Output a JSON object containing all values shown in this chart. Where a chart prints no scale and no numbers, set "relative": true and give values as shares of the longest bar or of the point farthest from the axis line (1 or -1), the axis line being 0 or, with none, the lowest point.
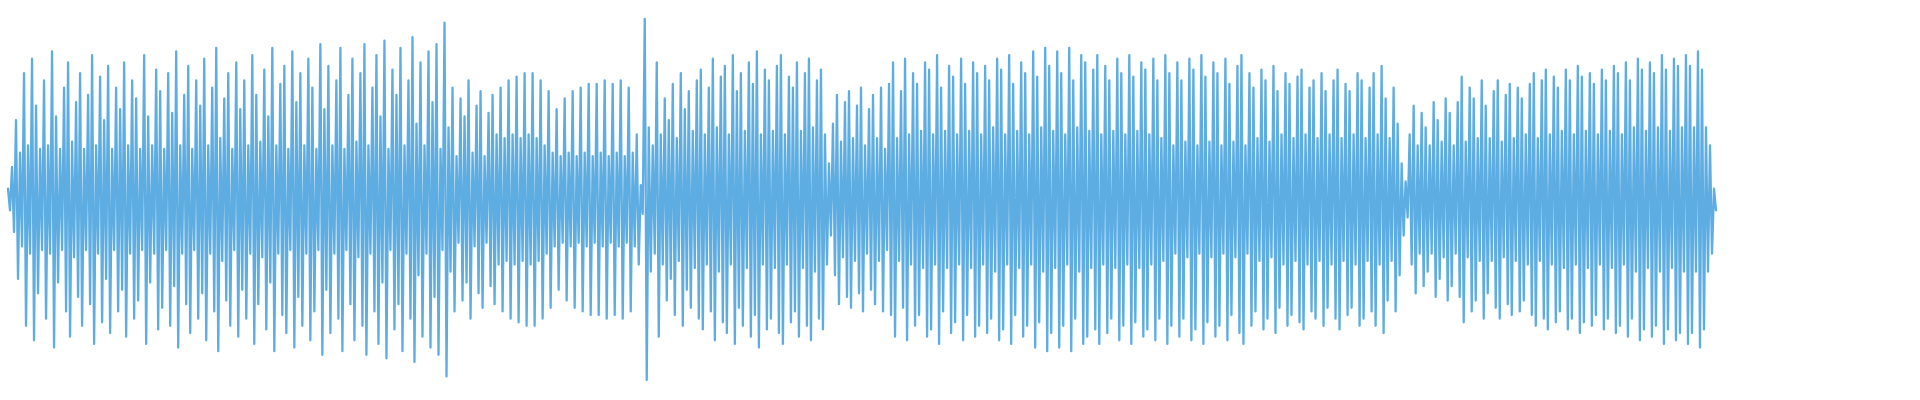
{
  "chart_data": {
    "type": "line",
    "relative": true,
    "color": "#5dade2",
    "categories": [
      null,
      null,
      null,
      null,
      null,
      null,
      null,
      null,
      null,
      null,
      null,
      null,
      null,
      null,
      null,
      null,
      null,
      null,
      null,
      null,
      null,
      null,
      null,
      null,
      null,
      null,
      null,
      null,
      null,
      null,
      null,
      null,
      null,
      null,
      null,
      null,
      null,
      null,
      null,
      null,
      null,
      null,
      null,
      null,
      null,
      null,
      null,
      null,
      null,
      null,
      null,
      null,
      null,
      null,
      null,
      null,
      null,
      null,
      null,
      null,
      null,
      null,
      null,
      null,
      null,
      null,
      null,
      null,
      null,
      null,
      null,
      null,
      null,
      null,
      null,
      null,
      null,
      null,
      null,
      null,
      null,
      null,
      null,
      null,
      null,
      null,
      null,
      null,
      null,
      null,
      null,
      null,
      null,
      null,
      null,
      null,
      null,
      null,
      null,
      null,
      null,
      null,
      null,
      null,
      null,
      null,
      null,
      null,
      null,
      null,
      null,
      null,
      null,
      null,
      null,
      null,
      null,
      null,
      null,
      null,
      null,
      null,
      null,
      null,
      null,
      null,
      null,
      null,
      null,
      null,
      null,
      null,
      null,
      null,
      null,
      null,
      null,
      null,
      null,
      null,
      null,
      null,
      null,
      null,
      null,
      null,
      null,
      null,
      null,
      null,
      null,
      null,
      null,
      null,
      null,
      null,
      null,
      null,
      null,
      null,
      null,
      null,
      null,
      null,
      null,
      null,
      null,
      null,
      null,
      null,
      null,
      null,
      null,
      null,
      null,
      null,
      null,
      null,
      null,
      null,
      null,
      null,
      null,
      null,
      null,
      null,
      null,
      null,
      null,
      null,
      null,
      null,
      null,
      null,
      null,
      null,
      null,
      null,
      null,
      null,
      null,
      null,
      null,
      null,
      null,
      null,
      null,
      null,
      null,
      null,
      null,
      null,
      null,
      null,
      null,
      null,
      null,
      null,
      null,
      null,
      null,
      null,
      null,
      null,
      null,
      null,
      null,
      null,
      null,
      null,
      null,
      null,
      null,
      null,
      null,
      null,
      null,
      null,
      null,
      null,
      null,
      null,
      null,
      null,
      null,
      null,
      null,
      null,
      null,
      null,
      null,
      null,
      null,
      null,
      null,
      null,
      null,
      null,
      null,
      null,
      null,
      null,
      null,
      null,
      null,
      null,
      null,
      null,
      null,
      null,
      null,
      null,
      null,
      null,
      null,
      null,
      null,
      null,
      null,
      null,
      null,
      null,
      null,
      null,
      null,
      null,
      null,
      null,
      null,
      null,
      null,
      null,
      null,
      null,
      null,
      null,
      null,
      null,
      null,
      null,
      null,
      null,
      null,
      null,
      null,
      null,
      null,
      null,
      null,
      null,
      null,
      null,
      null,
      null,
      null,
      null,
      null,
      null,
      null,
      null,
      null,
      null,
      null,
      null,
      null,
      null,
      null,
      null,
      null,
      null,
      null,
      null,
      null,
      null,
      null,
      null,
      null,
      null,
      null,
      null,
      null,
      null,
      null,
      null,
      null,
      null,
      null,
      null,
      null,
      null,
      null,
      null,
      null,
      null,
      null,
      null,
      null,
      null,
      null,
      null,
      null,
      null,
      null,
      null,
      null,
      null,
      null,
      null,
      null,
      null,
      null,
      null,
      null,
      null,
      null,
      null,
      null,
      null,
      null,
      null,
      null,
      null,
      null,
      null,
      null,
      null,
      null,
      null,
      null,
      null,
      null,
      null,
      null,
      null,
      null,
      null,
      null,
      null,
      null,
      null,
      null,
      null,
      null,
      null,
      null,
      null,
      null,
      null,
      null,
      null,
      null,
      null,
      null,
      null,
      null,
      null,
      null,
      null,
      null,
      null,
      null,
      null,
      null,
      null,
      null,
      null,
      null,
      null,
      null,
      null,
      null,
      null,
      null,
      null,
      null,
      null,
      null,
      null,
      null,
      null,
      null,
      null,
      null,
      null,
      null,
      null,
      null,
      null,
      null,
      null,
      null,
      null,
      null,
      null,
      null,
      null,
      null,
      null,
      null,
      null,
      null,
      null,
      null,
      null,
      null,
      null,
      null,
      null,
      null,
      null,
      null,
      null,
      null,
      null,
      null,
      null,
      null,
      null,
      null,
      null,
      null,
      null,
      null,
      null,
      null,
      null,
      null,
      null,
      null,
      null,
      null,
      null,
      null,
      null,
      null,
      null,
      null,
      null,
      null,
      null,
      null,
      null,
      null,
      null,
      null,
      null,
      null,
      null,
      null,
      null,
      null,
      null,
      null,
      null,
      null,
      null,
      null,
      null,
      null,
      null,
      null,
      null,
      null,
      null,
      null,
      null,
      null,
      null,
      null,
      null,
      null,
      null,
      null,
      null,
      null,
      null,
      null,
      null,
      null,
      null,
      null,
      null,
      null,
      null,
      null,
      null,
      null,
      null,
      null,
      null,
      null,
      null,
      null,
      null,
      null,
      null,
      null,
      null,
      null,
      null,
      null,
      null,
      null,
      null,
      null,
      null,
      null,
      null,
      null,
      null,
      null,
      null,
      null,
      null,
      null,
      null,
      null,
      null,
      null,
      null,
      null,
      null,
      null,
      null,
      null,
      null,
      null,
      null,
      null,
      null,
      null,
      null,
      null,
      null,
      null,
      null,
      null,
      null,
      null,
      null,
      null,
      null,
      null,
      null,
      null,
      null,
      null,
      null,
      null,
      null,
      null,
      null,
      null,
      null,
      null,
      null,
      null,
      null,
      null,
      null,
      null,
      null,
      null,
      null,
      null,
      null,
      null,
      null,
      null,
      null,
      null,
      null,
      null,
      null,
      null,
      null,
      null,
      null,
      null,
      null,
      null,
      null,
      null,
      null,
      null,
      null,
      null,
      null,
      null,
      null,
      null,
      null,
      null,
      null,
      null,
      null,
      null,
      null,
      null,
      null,
      null,
      null,
      null,
      null,
      null,
      null,
      null,
      null,
      null,
      null,
      null,
      null,
      null,
      null,
      null,
      null,
      null,
      null,
      null,
      null,
      null,
      null,
      null,
      null,
      null,
      null,
      null,
      null,
      null,
      null,
      null,
      null,
      null,
      null,
      null,
      null,
      null,
      null,
      null,
      null,
      null,
      null,
      null,
      null,
      null,
      null,
      null,
      null,
      null,
      null,
      null,
      null,
      null,
      null,
      null,
      null,
      null,
      null,
      null,
      null,
      null,
      null,
      null,
      null,
      null,
      null,
      null,
      null,
      null,
      null,
      null,
      null,
      null,
      null,
      null,
      null,
      null,
      null,
      null,
      null,
      null,
      null,
      null,
      null,
      null,
      null,
      null,
      null,
      null,
      null,
      null,
      null,
      null,
      null,
      null,
      null,
      null,
      null,
      null,
      null,
      null,
      null,
      null,
      null,
      null,
      null,
      null,
      null,
      null,
      null,
      null,
      null,
      null,
      null,
      null,
      null,
      null,
      null,
      null,
      null,
      null,
      null,
      null,
      null,
      null,
      null,
      null,
      null,
      null,
      null,
      null,
      null,
      null,
      null,
      null,
      null,
      null,
      null,
      null,
      null,
      null,
      null,
      null,
      null,
      null,
      null,
      null,
      null,
      null,
      null,
      null,
      null,
      null,
      null,
      null,
      null,
      null,
      null,
      null,
      null,
      null,
      null,
      null,
      null,
      null,
      null,
      null,
      null,
      null,
      null,
      null,
      null,
      null,
      null,
      null,
      null,
      null,
      null,
      null,
      null,
      null,
      null,
      null,
      null,
      null,
      null,
      null,
      null,
      null,
      null,
      null,
      null,
      null,
      null
    ],
    "values": [
      0.53,
      0.47,
      0.59,
      0.41,
      0.72,
      0.28,
      0.63,
      0.37,
      0.85,
      0.15,
      0.65,
      0.35,
      0.89,
      0.11,
      0.76,
      0.24,
      0.64,
      0.36,
      0.83,
      0.17,
      0.65,
      0.35,
      0.91,
      0.09,
      0.73,
      0.27,
      0.64,
      0.36,
      0.81,
      0.19,
      0.88,
      0.12,
      0.66,
      0.34,
      0.77,
      0.23,
      0.85,
      0.15,
      0.64,
      0.36,
      0.79,
      0.21,
      0.9,
      0.1,
      0.65,
      0.35,
      0.84,
      0.16,
      0.72,
      0.28,
      0.87,
      0.13,
      0.64,
      0.36,
      0.81,
      0.19,
      0.75,
      0.25,
      0.88,
      0.12,
      0.65,
      0.35,
      0.83,
      0.17,
      0.78,
      0.22,
      0.64,
      0.36,
      0.9,
      0.1,
      0.73,
      0.27,
      0.65,
      0.35,
      0.86,
      0.14,
      0.8,
      0.2,
      0.64,
      0.36,
      0.85,
      0.15,
      0.74,
      0.26,
      0.91,
      0.09,
      0.65,
      0.35,
      0.79,
      0.21,
      0.87,
      0.13,
      0.64,
      0.36,
      0.83,
      0.17,
      0.76,
      0.24,
      0.89,
      0.11,
      0.65,
      0.35,
      0.81,
      0.19,
      0.92,
      0.08,
      0.67,
      0.33,
      0.78,
      0.22,
      0.85,
      0.15,
      0.64,
      0.36,
      0.88,
      0.12,
      0.75,
      0.25,
      0.83,
      0.17,
      0.65,
      0.35,
      0.9,
      0.1,
      0.79,
      0.21,
      0.66,
      0.34,
      0.86,
      0.14,
      0.73,
      0.27,
      0.92,
      0.08,
      0.65,
      0.35,
      0.82,
      0.18,
      0.87,
      0.13,
      0.64,
      0.36,
      0.91,
      0.09,
      0.77,
      0.23,
      0.85,
      0.15,
      0.65,
      0.35,
      0.89,
      0.11,
      0.81,
      0.19,
      0.64,
      0.36,
      0.93,
      0.07,
      0.75,
      0.25,
      0.87,
      0.13,
      0.65,
      0.35,
      0.83,
      0.17,
      0.92,
      0.08,
      0.64,
      0.36,
      0.79,
      0.21,
      0.89,
      0.11,
      0.66,
      0.34,
      0.85,
      0.15,
      0.93,
      0.07,
      0.65,
      0.35,
      0.81,
      0.19,
      0.9,
      0.1,
      0.73,
      0.27,
      0.94,
      0.06,
      0.64,
      0.36,
      0.86,
      0.14,
      0.79,
      0.21,
      0.92,
      0.08,
      0.65,
      0.35,
      0.83,
      0.17,
      0.95,
      0.05,
      0.71,
      0.29,
      0.88,
      0.12,
      0.65,
      0.35,
      0.91,
      0.09,
      0.77,
      0.23,
      0.93,
      0.07,
      0.64,
      0.36,
      0.99,
      0.01,
      0.7,
      0.3,
      0.81,
      0.19,
      0.62,
      0.38,
      0.78,
      0.22,
      0.73,
      0.27,
      0.83,
      0.17,
      0.63,
      0.37,
      0.76,
      0.24,
      0.8,
      0.2,
      0.62,
      0.38,
      0.74,
      0.26,
      0.79,
      0.21,
      0.68,
      0.32,
      0.81,
      0.19,
      0.67,
      0.33,
      0.83,
      0.17,
      0.68,
      0.32,
      0.84,
      0.16,
      0.67,
      0.33,
      0.85,
      0.15,
      0.68,
      0.32,
      0.85,
      0.15,
      0.67,
      0.33,
      0.83,
      0.17,
      0.65,
      0.35,
      0.8,
      0.2,
      0.63,
      0.37,
      0.75,
      0.25,
      0.62,
      0.38,
      0.78,
      0.22,
      0.63,
      0.37,
      0.8,
      0.2,
      0.62,
      0.38,
      0.81,
      0.19,
      0.63,
      0.37,
      0.82,
      0.18,
      0.62,
      0.38,
      0.82,
      0.18,
      0.63,
      0.37,
      0.83,
      0.17,
      0.62,
      0.38,
      0.82,
      0.18,
      0.63,
      0.37,
      0.83,
      0.17,
      0.62,
      0.38,
      0.81,
      0.19,
      0.63,
      0.37,
      0.68,
      0.32,
      0.54,
      0.46,
      1,
      0,
      0.7,
      0.3,
      0.65,
      0.35,
      0.88,
      0.12,
      0.68,
      0.32,
      0.78,
      0.22,
      0.72,
      0.28,
      0.82,
      0.18,
      0.67,
      0.33,
      0.85,
      0.15,
      0.75,
      0.25,
      0.8,
      0.2,
      0.69,
      0.31,
      0.83,
      0.17,
      0.86,
      0.14,
      0.68,
      0.32,
      0.81,
      0.19,
      0.89,
      0.11,
      0.7,
      0.3,
      0.84,
      0.16,
      0.87,
      0.13,
      0.68,
      0.32,
      0.9,
      0.1,
      0.8,
      0.2,
      0.85,
      0.15,
      0.69,
      0.31,
      0.88,
      0.12,
      0.82,
      0.18,
      0.91,
      0.09,
      0.68,
      0.32,
      0.86,
      0.14,
      0.83,
      0.17,
      0.69,
      0.31,
      0.87,
      0.13,
      0.9,
      0.1,
      0.68,
      0.32,
      0.84,
      0.16,
      0.81,
      0.19,
      0.88,
      0.12,
      0.69,
      0.31,
      0.85,
      0.15,
      0.89,
      0.11,
      0.7,
      0.3,
      0.83,
      0.17,
      0.86,
      0.14,
      0.68,
      0.32,
      0.6,
      0.4,
      0.71,
      0.29,
      0.79,
      0.21,
      0.66,
      0.34,
      0.77,
      0.23,
      0.8,
      0.2,
      0.67,
      0.33,
      0.76,
      0.24,
      0.81,
      0.19,
      0.65,
      0.35,
      0.75,
      0.25,
      0.79,
      0.21,
      0.67,
      0.33,
      0.81,
      0.19,
      0.64,
      0.36,
      0.82,
      0.18,
      0.88,
      0.12,
      0.67,
      0.33,
      0.8,
      0.2,
      0.89,
      0.11,
      0.68,
      0.32,
      0.85,
      0.15,
      0.82,
      0.18,
      0.69,
      0.31,
      0.88,
      0.12,
      0.86,
      0.14,
      0.68,
      0.32,
      0.9,
      0.1,
      0.81,
      0.19,
      0.69,
      0.31,
      0.87,
      0.13,
      0.84,
      0.16,
      0.68,
      0.32,
      0.89,
      0.11,
      0.82,
      0.18,
      0.69,
      0.31,
      0.88,
      0.12,
      0.85,
      0.15,
      0.68,
      0.32,
      0.87,
      0.13,
      0.83,
      0.17,
      0.7,
      0.3,
      0.89,
      0.11,
      0.86,
      0.14,
      0.68,
      0.32,
      0.9,
      0.1,
      0.82,
      0.18,
      0.69,
      0.31,
      0.88,
      0.12,
      0.85,
      0.15,
      0.68,
      0.32,
      0.91,
      0.09,
      0.84,
      0.16,
      0.7,
      0.3,
      0.92,
      0.08,
      0.87,
      0.13,
      0.69,
      0.31,
      0.91,
      0.09,
      0.85,
      0.15,
      0.68,
      0.32,
      0.92,
      0.08,
      0.83,
      0.17,
      0.7,
      0.3,
      0.9,
      0.1,
      0.88,
      0.12,
      0.69,
      0.31,
      0.86,
      0.14,
      0.9,
      0.1,
      0.68,
      0.32,
      0.87,
      0.13,
      0.83,
      0.17,
      0.69,
      0.31,
      0.89,
      0.11,
      0.85,
      0.15,
      0.68,
      0.32,
      0.9,
      0.1,
      0.84,
      0.16,
      0.69,
      0.31,
      0.88,
      0.12,
      0.86,
      0.14,
      0.68,
      0.32,
      0.89,
      0.11,
      0.83,
      0.17,
      0.67,
      0.33,
      0.9,
      0.1,
      0.85,
      0.15,
      0.65,
      0.35,
      0.88,
      0.12,
      0.83,
      0.17,
      0.66,
      0.34,
      0.89,
      0.11,
      0.86,
      0.14,
      0.65,
      0.35,
      0.9,
      0.1,
      0.84,
      0.16,
      0.66,
      0.34,
      0.88,
      0.12,
      0.85,
      0.15,
      0.65,
      0.35,
      0.89,
      0.11,
      0.82,
      0.18,
      0.66,
      0.34,
      0.87,
      0.13,
      0.9,
      0.1,
      0.65,
      0.35,
      0.85,
      0.15,
      0.81,
      0.19,
      0.67,
      0.33,
      0.86,
      0.14,
      0.83,
      0.17,
      0.66,
      0.34,
      0.87,
      0.13,
      0.8,
      0.2,
      0.68,
      0.32,
      0.85,
      0.15,
      0.82,
      0.18,
      0.67,
      0.33,
      0.84,
      0.16,
      0.86,
      0.14,
      0.68,
      0.32,
      0.81,
      0.19,
      0.83,
      0.17,
      0.67,
      0.33,
      0.85,
      0.15,
      0.8,
      0.2,
      0.68,
      0.32,
      0.83,
      0.17,
      0.86,
      0.14,
      0.67,
      0.33,
      0.82,
      0.18,
      0.8,
      0.2,
      0.68,
      0.32,
      0.85,
      0.15,
      0.83,
      0.17,
      0.67,
      0.33,
      0.81,
      0.19,
      0.85,
      0.15,
      0.68,
      0.32,
      0.87,
      0.13,
      0.78,
      0.22,
      0.67,
      0.33,
      0.81,
      0.19,
      0.71,
      0.29,
      0.6,
      0.4,
      0.55,
      0.45,
      0.68,
      0.32,
      0.76,
      0.24,
      0.65,
      0.35,
      0.74,
      0.26,
      0.7,
      0.3,
      0.65,
      0.35,
      0.77,
      0.23,
      0.72,
      0.28,
      0.66,
      0.34,
      0.78,
      0.22,
      0.74,
      0.26,
      0.65,
      0.35,
      0.77,
      0.23,
      0.84,
      0.16,
      0.66,
      0.34,
      0.81,
      0.19,
      0.78,
      0.22,
      0.67,
      0.33,
      0.83,
      0.17,
      0.76,
      0.24,
      0.67,
      0.33,
      0.8,
      0.2,
      0.83,
      0.17,
      0.66,
      0.34,
      0.79,
      0.21,
      0.82,
      0.18,
      0.67,
      0.33,
      0.81,
      0.19,
      0.78,
      0.22,
      0.68,
      0.32,
      0.82,
      0.18,
      0.85,
      0.15,
      0.67,
      0.33,
      0.83,
      0.17,
      0.86,
      0.14,
      0.68,
      0.32,
      0.84,
      0.16,
      0.81,
      0.19,
      0.69,
      0.31,
      0.86,
      0.14,
      0.83,
      0.17,
      0.68,
      0.32,
      0.87,
      0.13,
      0.84,
      0.16,
      0.69,
      0.31,
      0.85,
      0.15,
      0.82,
      0.18,
      0.68,
      0.32,
      0.86,
      0.14,
      0.83,
      0.17,
      0.69,
      0.31,
      0.87,
      0.13,
      0.85,
      0.15,
      0.68,
      0.32,
      0.88,
      0.12,
      0.83,
      0.17,
      0.7,
      0.3,
      0.89,
      0.11,
      0.86,
      0.14,
      0.69,
      0.31,
      0.88,
      0.12,
      0.85,
      0.15,
      0.7,
      0.3,
      0.9,
      0.1,
      0.86,
      0.14,
      0.69,
      0.31,
      0.89,
      0.11,
      0.87,
      0.13,
      0.7,
      0.3,
      0.9,
      0.1,
      0.87,
      0.13,
      0.7,
      0.3,
      0.91,
      0.09,
      0.86,
      0.14,
      0.7,
      0.3,
      0.65,
      0.35,
      0.53,
      0.47
    ]
  }
}
